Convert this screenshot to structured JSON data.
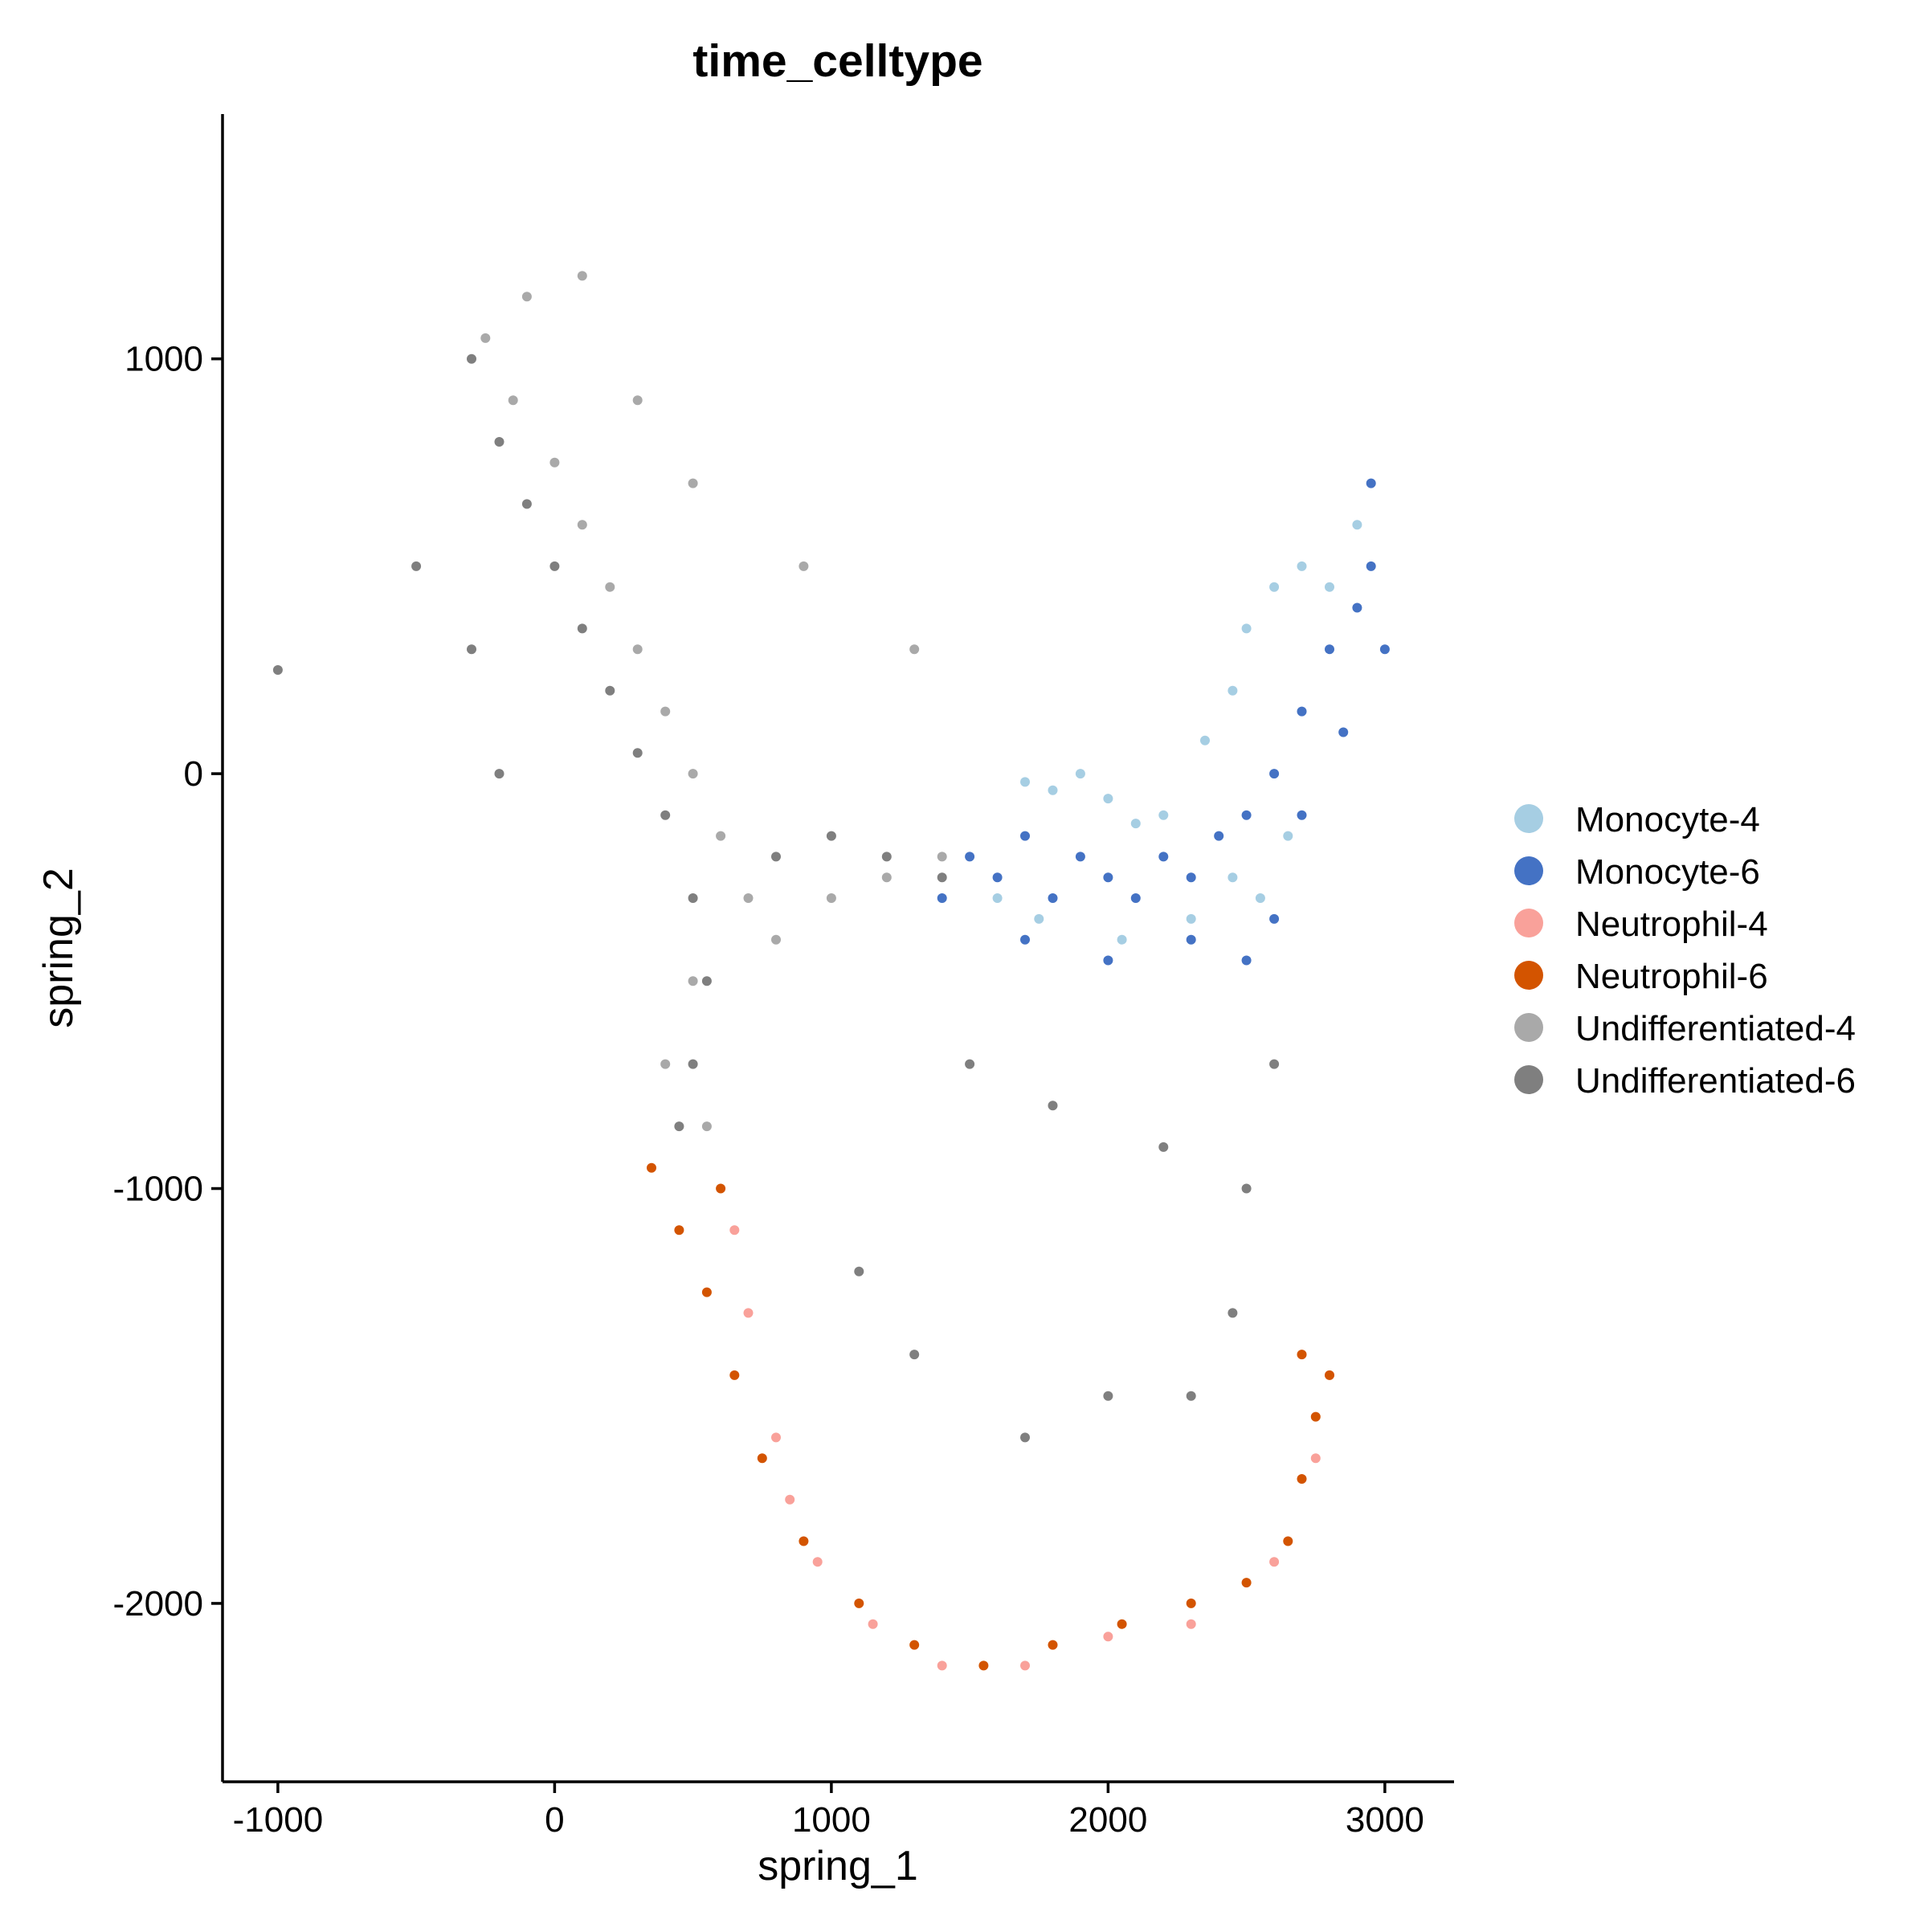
{
  "chart_data": {
    "type": "scatter",
    "title": "time_celltype",
    "xlabel": "spring_1",
    "ylabel": "spring_2",
    "xlim": [
      -1200,
      3250
    ],
    "ylim": [
      -2430,
      1590
    ],
    "xticks": [
      -1000,
      0,
      1000,
      2000,
      3000
    ],
    "xtick_labels": [
      "-1000",
      "0",
      "1000",
      "2000",
      "3000"
    ],
    "yticks": [
      -2000,
      -1000,
      0,
      1000
    ],
    "ytick_labels": [
      "-2000",
      "-1000",
      "0",
      "1000"
    ],
    "grid": false,
    "legend_position": "right",
    "series": [
      {
        "name": "Monocyte-4",
        "color": "#a6cee3",
        "points": [
          [
            1700,
            -20
          ],
          [
            1800,
            -40
          ],
          [
            1900,
            0
          ],
          [
            2000,
            -60
          ],
          [
            2100,
            -120
          ],
          [
            2200,
            -100
          ],
          [
            2350,
            80
          ],
          [
            2450,
            200
          ],
          [
            2500,
            350
          ],
          [
            2600,
            450
          ],
          [
            2700,
            500
          ],
          [
            2800,
            450
          ],
          [
            2900,
            600
          ],
          [
            2450,
            -250
          ],
          [
            2550,
            -300
          ],
          [
            2650,
            -150
          ],
          [
            2300,
            -350
          ],
          [
            1600,
            -300
          ],
          [
            1750,
            -350
          ],
          [
            2050,
            -400
          ]
        ]
      },
      {
        "name": "Monocyte-6",
        "color": "#4472c4",
        "points": [
          [
            1400,
            -300
          ],
          [
            1500,
            -200
          ],
          [
            1600,
            -250
          ],
          [
            1700,
            -150
          ],
          [
            1800,
            -300
          ],
          [
            1900,
            -200
          ],
          [
            2000,
            -250
          ],
          [
            2100,
            -300
          ],
          [
            2200,
            -200
          ],
          [
            2300,
            -250
          ],
          [
            2400,
            -150
          ],
          [
            2500,
            -100
          ],
          [
            2600,
            0
          ],
          [
            2700,
            150
          ],
          [
            2800,
            300
          ],
          [
            2900,
            400
          ],
          [
            2950,
            500
          ],
          [
            3000,
            300
          ],
          [
            2850,
            100
          ],
          [
            2700,
            -100
          ],
          [
            2600,
            -350
          ],
          [
            2500,
            -450
          ],
          [
            2300,
            -400
          ],
          [
            2000,
            -450
          ],
          [
            1700,
            -400
          ],
          [
            2950,
            700
          ]
        ]
      },
      {
        "name": "Neutrophil-4",
        "color": "#f9a19a",
        "points": [
          [
            650,
            -1100
          ],
          [
            700,
            -1300
          ],
          [
            800,
            -1600
          ],
          [
            850,
            -1750
          ],
          [
            950,
            -1900
          ],
          [
            1150,
            -2050
          ],
          [
            1400,
            -2150
          ],
          [
            1700,
            -2150
          ],
          [
            2000,
            -2080
          ],
          [
            2300,
            -2050
          ],
          [
            2600,
            -1900
          ],
          [
            2750,
            -1650
          ],
          [
            2800,
            -1450
          ]
        ]
      },
      {
        "name": "Neutrophil-6",
        "color": "#d35400",
        "points": [
          [
            350,
            -950
          ],
          [
            450,
            -1100
          ],
          [
            550,
            -1250
          ],
          [
            650,
            -1450
          ],
          [
            750,
            -1650
          ],
          [
            900,
            -1850
          ],
          [
            1100,
            -2000
          ],
          [
            1300,
            -2100
          ],
          [
            1550,
            -2150
          ],
          [
            1800,
            -2100
          ],
          [
            2050,
            -2050
          ],
          [
            2300,
            -2000
          ],
          [
            2500,
            -1950
          ],
          [
            2650,
            -1850
          ],
          [
            2700,
            -1700
          ],
          [
            2750,
            -1550
          ],
          [
            2800,
            -1450
          ],
          [
            2700,
            -1400
          ],
          [
            600,
            -1000
          ]
        ]
      },
      {
        "name": "Undifferentiated-4",
        "color": "#a9a9a9",
        "points": [
          [
            -250,
            1050
          ],
          [
            -150,
            900
          ],
          [
            0,
            750
          ],
          [
            100,
            600
          ],
          [
            200,
            450
          ],
          [
            300,
            300
          ],
          [
            400,
            150
          ],
          [
            500,
            0
          ],
          [
            600,
            -150
          ],
          [
            700,
            -300
          ],
          [
            800,
            -400
          ],
          [
            1000,
            -300
          ],
          [
            1200,
            -250
          ],
          [
            1400,
            -200
          ],
          [
            -100,
            1150
          ],
          [
            100,
            1200
          ],
          [
            300,
            900
          ],
          [
            500,
            700
          ],
          [
            900,
            500
          ],
          [
            1300,
            300
          ],
          [
            500,
            -500
          ],
          [
            400,
            -700
          ],
          [
            550,
            -850
          ]
        ]
      },
      {
        "name": "Undifferentiated-6",
        "color": "#7f7f7f",
        "points": [
          [
            -300,
            1000
          ],
          [
            -200,
            800
          ],
          [
            -100,
            650
          ],
          [
            0,
            500
          ],
          [
            100,
            350
          ],
          [
            200,
            200
          ],
          [
            300,
            50
          ],
          [
            400,
            -100
          ],
          [
            500,
            -300
          ],
          [
            550,
            -500
          ],
          [
            500,
            -700
          ],
          [
            450,
            -850
          ],
          [
            -500,
            500
          ],
          [
            -300,
            300
          ],
          [
            -200,
            0
          ],
          [
            800,
            -200
          ],
          [
            1000,
            -150
          ],
          [
            1200,
            -200
          ],
          [
            1400,
            -250
          ],
          [
            1500,
            -700
          ],
          [
            1800,
            -800
          ],
          [
            2200,
            -900
          ],
          [
            2600,
            -700
          ],
          [
            2500,
            -1000
          ],
          [
            2450,
            -1300
          ],
          [
            2300,
            -1500
          ],
          [
            2000,
            -1500
          ],
          [
            1700,
            -1600
          ],
          [
            1300,
            -1400
          ],
          [
            1100,
            -1200
          ],
          [
            -1000,
            250
          ]
        ]
      }
    ]
  }
}
